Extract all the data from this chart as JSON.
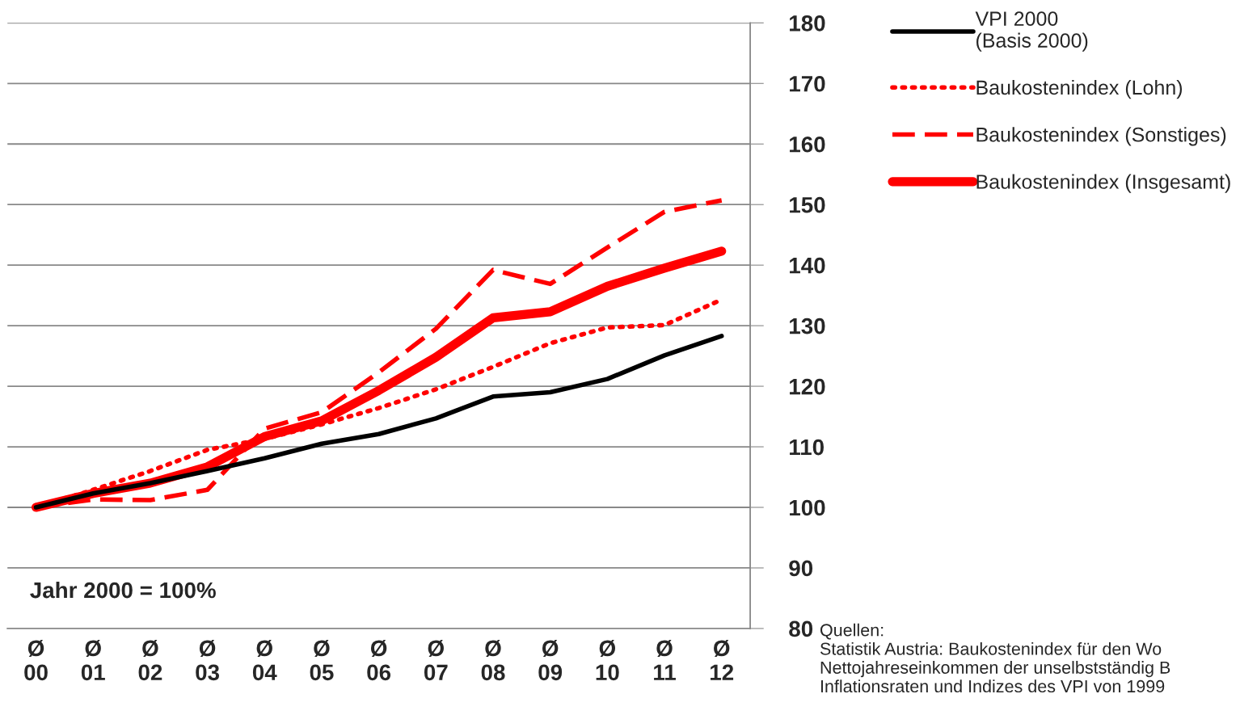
{
  "chart_data": {
    "type": "line",
    "categories": [
      "Ø\n00",
      "Ø\n01",
      "Ø\n02",
      "Ø\n03",
      "Ø\n04",
      "Ø\n05",
      "Ø\n06",
      "Ø\n07",
      "Ø\n08",
      "Ø\n09",
      "Ø\n10",
      "Ø\n11",
      "Ø\n12"
    ],
    "series": [
      {
        "name": "VPI 2000\n(Basis 2000)",
        "color": "#000000",
        "line_style": "solid",
        "values": [
          100,
          102.3,
          104.0,
          106.0,
          108.1,
          110.5,
          112.1,
          114.7,
          118.3,
          119.0,
          121.2,
          125.1,
          128.3
        ]
      },
      {
        "name": "Baukostenindex (Lohn)",
        "color": "#ff0000",
        "line_style": "dotted",
        "values": [
          100,
          102.9,
          106.0,
          109.5,
          111.3,
          113.7,
          116.4,
          119.5,
          123.2,
          127.1,
          129.7,
          130.1,
          134.3
        ]
      },
      {
        "name": "Baukostenindex (Sonstiges)",
        "color": "#ff0000",
        "line_style": "dashed",
        "values": [
          100,
          101.3,
          101.2,
          102.9,
          113.0,
          115.7,
          122.3,
          129.5,
          139.2,
          136.9,
          142.9,
          148.8,
          150.7
        ]
      },
      {
        "name": "Baukostenindex (Insgesamt)",
        "color": "#ff0000",
        "line_style": "solid",
        "values": [
          100,
          102.3,
          104.0,
          106.7,
          111.7,
          114.3,
          119.3,
          124.8,
          131.3,
          132.3,
          136.5,
          139.5,
          142.3
        ]
      }
    ],
    "ylim": [
      80,
      180
    ],
    "yticks": [
      80,
      90,
      100,
      110,
      120,
      130,
      140,
      150,
      160,
      170,
      180
    ],
    "grid": "y",
    "legend": "top right",
    "marker": "none",
    "annotations": [
      "Jahr 2000 = 100%",
      "Quellen:\nStatistik Austria: Baukostenindex für den Wo\nNettojahreseinkommen der unselbstständig B\nInflationsraten und Indizes des VPI von 1999"
    ]
  }
}
